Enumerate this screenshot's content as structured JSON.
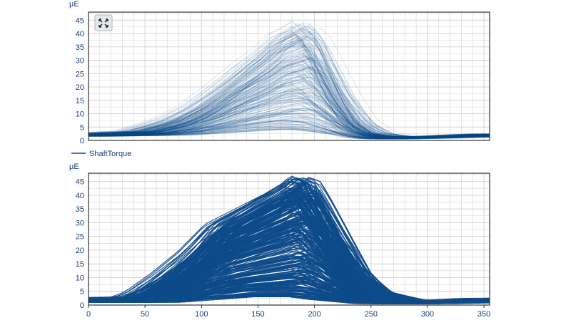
{
  "colors": {
    "series": "#0d4a8a",
    "grid": "#d4d4d4",
    "frame": "#333333",
    "text": "#1a3f7a",
    "expand_button_bg": "#e8e8e8"
  },
  "toolbar": {
    "expand_icon": "expand-arrows-icon"
  },
  "legend": {
    "label": "ShaftTorque"
  },
  "chart_data": [
    {
      "type": "line",
      "title": "",
      "unit_label": "µE",
      "xlim": [
        0,
        355
      ],
      "ylim": [
        0,
        48
      ],
      "y_ticks": [
        "0",
        "5",
        "10",
        "15",
        "20",
        "25",
        "30",
        "35",
        "40",
        "45"
      ],
      "x_tick_labels_shown": false,
      "grid": true,
      "style": "thin translucent overlaid curves",
      "series": [
        {
          "name": "ShaftTorque",
          "x": [
            0,
            50,
            100,
            150,
            180,
            220,
            250,
            300,
            355
          ],
          "y": [
            2,
            2.5,
            9,
            25,
            32,
            15,
            2,
            1,
            2
          ]
        }
      ],
      "envelope": {
        "x": [
          0,
          50,
          80,
          100,
          120,
          140,
          160,
          170,
          180,
          190,
          200,
          210,
          220,
          235,
          250,
          270,
          300,
          355
        ],
        "upper": [
          2.5,
          3.5,
          8,
          13,
          20,
          28,
          35,
          40,
          42,
          45,
          40,
          30,
          20,
          8,
          3,
          1.5,
          1.5,
          2.5
        ],
        "lower": [
          1.5,
          1.8,
          2,
          2.5,
          3,
          3.5,
          4,
          4,
          4,
          3.5,
          3,
          2.5,
          2,
          1,
          0.5,
          0.5,
          0.8,
          1.5
        ]
      }
    },
    {
      "type": "line",
      "title": "",
      "unit_label": "µE",
      "xlim": [
        0,
        355
      ],
      "ylim": [
        0,
        48
      ],
      "y_ticks": [
        "0",
        "5",
        "10",
        "15",
        "20",
        "25",
        "30",
        "35",
        "40",
        "45"
      ],
      "x_ticks": [
        "0",
        "50",
        "100",
        "150",
        "200",
        "250",
        "300",
        "350"
      ],
      "grid": true,
      "style": "dense opaque overlaid curves",
      "series": [
        {
          "name": "ShaftTorque",
          "x": [
            0,
            50,
            100,
            150,
            180,
            220,
            250,
            300,
            355
          ],
          "y": [
            2,
            3,
            15,
            33,
            40,
            22,
            3,
            1,
            2
          ]
        }
      ],
      "envelope": {
        "x": [
          0,
          50,
          60,
          80,
          100,
          120,
          140,
          160,
          180,
          185,
          195,
          205,
          220,
          235,
          250,
          275,
          300,
          355
        ],
        "upper": [
          2.5,
          3,
          5,
          12,
          20,
          30,
          35,
          40,
          45,
          47.5,
          46,
          38,
          25,
          12,
          5,
          2,
          1.5,
          2.5
        ],
        "lower": [
          1,
          1,
          1,
          1.5,
          2,
          2.5,
          3,
          3,
          3,
          3,
          2.5,
          2,
          1.5,
          1,
          0.5,
          0.5,
          0.5,
          1
        ]
      }
    }
  ]
}
